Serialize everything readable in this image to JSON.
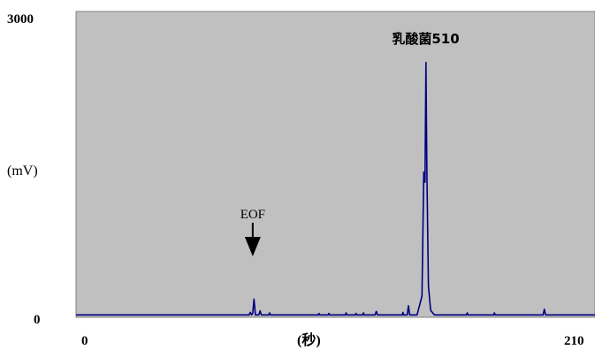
{
  "chart_data": {
    "type": "line",
    "title": "",
    "xlabel": "(秒)",
    "ylabel": "(mV)",
    "xlim": [
      0,
      210
    ],
    "ylim": [
      0,
      3000
    ],
    "x_ticks": [
      "0",
      "210"
    ],
    "y_ticks": [
      "0",
      "3000"
    ],
    "grid": false,
    "background": "#c0c0c0",
    "line_color": "#000080",
    "annotations": [
      {
        "text": "EOF",
        "x": 71.5,
        "arrow": true
      },
      {
        "text": "乳酸菌510",
        "x": 141.5
      }
    ],
    "series": [
      {
        "points": [
          [
            0,
            15
          ],
          [
            70,
            15
          ],
          [
            70.5,
            40
          ],
          [
            71,
            15
          ],
          [
            71.5,
            30
          ],
          [
            72,
            170
          ],
          [
            72.6,
            15
          ],
          [
            74,
            15
          ],
          [
            74.5,
            55
          ],
          [
            75,
            15
          ],
          [
            78,
            15
          ],
          [
            78.3,
            35
          ],
          [
            78.7,
            15
          ],
          [
            98,
            15
          ],
          [
            98.3,
            30
          ],
          [
            98.6,
            15
          ],
          [
            102,
            15
          ],
          [
            102.3,
            30
          ],
          [
            102.6,
            15
          ],
          [
            109,
            15
          ],
          [
            109.3,
            35
          ],
          [
            109.6,
            15
          ],
          [
            113,
            15
          ],
          [
            113.3,
            30
          ],
          [
            113.6,
            15
          ],
          [
            116,
            15
          ],
          [
            116.3,
            35
          ],
          [
            116.6,
            15
          ],
          [
            121,
            15
          ],
          [
            121.5,
            50
          ],
          [
            122,
            15
          ],
          [
            132,
            15
          ],
          [
            132.3,
            40
          ],
          [
            132.6,
            15
          ],
          [
            134,
            15
          ],
          [
            134.5,
            105
          ],
          [
            135,
            15
          ],
          [
            138,
            15
          ],
          [
            140,
            200
          ],
          [
            140.7,
            1420
          ],
          [
            141.2,
            1320
          ],
          [
            141.6,
            2500
          ],
          [
            142,
            1400
          ],
          [
            142.6,
            300
          ],
          [
            143.5,
            60
          ],
          [
            145,
            15
          ],
          [
            158,
            15
          ],
          [
            158.3,
            35
          ],
          [
            158.6,
            15
          ],
          [
            169,
            15
          ],
          [
            169.3,
            35
          ],
          [
            169.6,
            15
          ],
          [
            189,
            15
          ],
          [
            189.5,
            70
          ],
          [
            190,
            15
          ],
          [
            210,
            15
          ]
        ]
      }
    ]
  }
}
